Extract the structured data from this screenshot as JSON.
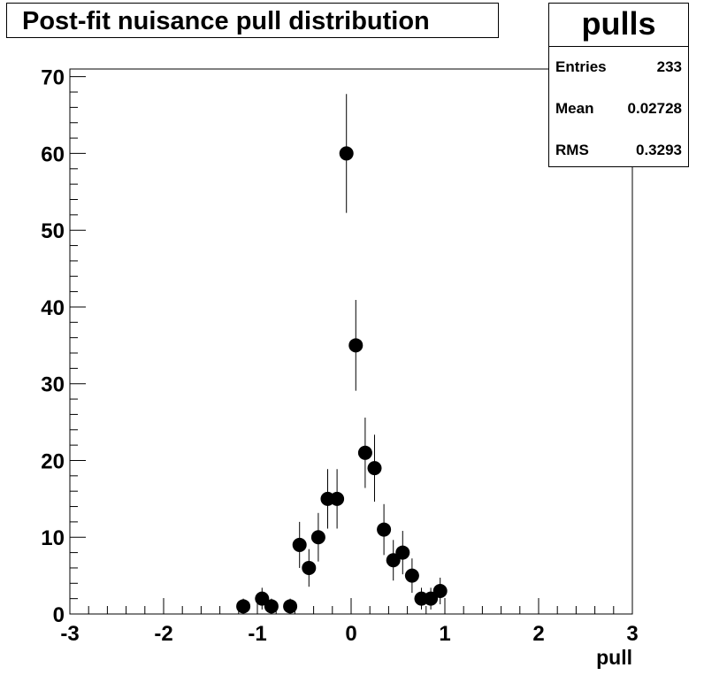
{
  "chart_data": {
    "type": "scatter",
    "title": "Post-fit nuisance pull distribution",
    "xlabel": "pull",
    "ylabel": "",
    "xlim": [
      -3,
      3
    ],
    "ylim": [
      0,
      71
    ],
    "xticks": [
      -3,
      -2,
      -1,
      0,
      1,
      2,
      3
    ],
    "yticks": [
      0,
      10,
      20,
      30,
      40,
      50,
      60,
      70
    ],
    "series": [
      {
        "name": "pulls",
        "x": [
          -1.15,
          -0.95,
          -0.85,
          -0.65,
          -0.55,
          -0.45,
          -0.35,
          -0.25,
          -0.15,
          -0.05,
          0.05,
          0.15,
          0.25,
          0.35,
          0.45,
          0.55,
          0.65,
          0.75,
          0.85,
          0.95
        ],
        "y": [
          1,
          2,
          1,
          1,
          9,
          6,
          10,
          15,
          15,
          60,
          35,
          21,
          19,
          11,
          7,
          8,
          5,
          2,
          2,
          3
        ]
      }
    ]
  },
  "stats": {
    "name": "pulls",
    "entries_label": "Entries",
    "entries": "233",
    "mean_label": "Mean",
    "mean": "0.02728",
    "rms_label": "RMS",
    "rms": "0.3293"
  }
}
